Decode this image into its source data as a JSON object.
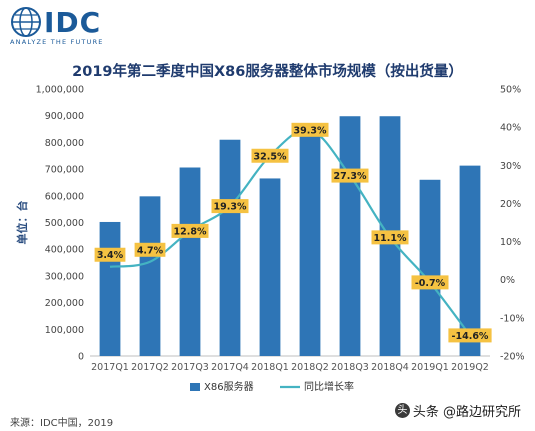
{
  "logo": {
    "text": "IDC",
    "tagline": "ANALYZE THE FUTURE"
  },
  "colors": {
    "bar": "#2e75b6",
    "line": "#44b3c2",
    "label_bg": "#f5c242",
    "brand": "#1b5a99"
  },
  "source": "来源：IDC中国，2019",
  "watermark": {
    "icon": "toutiao-account-icon",
    "text": "头条 @路边研究所"
  },
  "chart_data": {
    "type": "bar",
    "title": "2019年第二季度中国X86服务器整体市场规模（按出货量）",
    "ylabel": "单位：台",
    "categories": [
      "2017Q1",
      "2017Q2",
      "2017Q3",
      "2017Q4",
      "2018Q1",
      "2018Q2",
      "2018Q3",
      "2018Q4",
      "2019Q1",
      "2019Q2"
    ],
    "series": [
      {
        "name": "X86服务器",
        "type": "bar",
        "axis": "left",
        "values": [
          502000,
          598000,
          706000,
          810000,
          665000,
          835000,
          898000,
          898000,
          660000,
          713000
        ]
      },
      {
        "name": "同比增长率",
        "type": "line",
        "axis": "right",
        "values": [
          3.4,
          4.7,
          12.8,
          19.3,
          32.5,
          39.3,
          27.3,
          11.1,
          -0.7,
          -14.6
        ],
        "labels": [
          "3.4%",
          "4.7%",
          "12.8%",
          "19.3%",
          "32.5%",
          "39.3%",
          "27.3%",
          "11.1%",
          "-0.7%",
          "-14.6%"
        ]
      }
    ],
    "ylim": [
      0,
      1000000
    ],
    "y2lim": [
      -20,
      50
    ],
    "yticks": [
      "0",
      "100,000",
      "200,000",
      "300,000",
      "400,000",
      "500,000",
      "600,000",
      "700,000",
      "800,000",
      "900,000",
      "1,000,000"
    ],
    "y2ticks": [
      "-20%",
      "-10%",
      "0%",
      "10%",
      "20%",
      "30%",
      "40%",
      "50%"
    ],
    "grid": false,
    "legend": "bottom"
  }
}
